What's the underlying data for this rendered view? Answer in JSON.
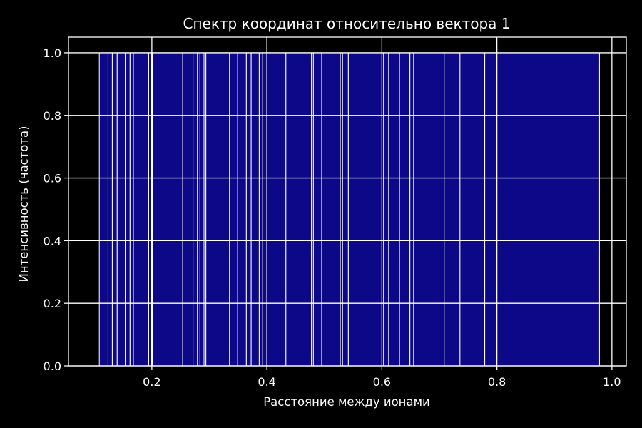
{
  "colors": {
    "background": "#000000",
    "bar_fill": "#0d0887",
    "bar_edge": "#ffffff",
    "axes": "#ffffff",
    "grid": "#ffffff",
    "text": "#ffffff"
  },
  "chart_data": {
    "type": "bar",
    "title": "Спектр координат относительно вектора 1",
    "xlabel": "Расстояние между ионами",
    "ylabel": "Интенсивность (частота)",
    "xlim": [
      0.055,
      1.025
    ],
    "ylim": [
      0.0,
      1.05
    ],
    "xticks": [
      0.2,
      0.4,
      0.6,
      0.8,
      1.0
    ],
    "xtick_labels": [
      "0.2",
      "0.4",
      "0.6",
      "0.8",
      "1.0"
    ],
    "yticks": [
      0.0,
      0.2,
      0.4,
      0.6,
      0.8,
      1.0
    ],
    "ytick_labels": [
      "0.0",
      "0.2",
      "0.4",
      "0.6",
      "0.8",
      "1.0"
    ],
    "grid": true,
    "legend": "none",
    "bar_value": 1.0,
    "bar_edges": [
      0.1086,
      0.1238,
      0.1312,
      0.1397,
      0.1538,
      0.1621,
      0.1679,
      0.1945,
      0.1993,
      0.2014,
      0.2536,
      0.2716,
      0.2793,
      0.2837,
      0.2907,
      0.294,
      0.3351,
      0.3492,
      0.3643,
      0.3727,
      0.3867,
      0.3927,
      0.4331,
      0.4776,
      0.4809,
      0.4953,
      0.5277,
      0.5316,
      0.5417,
      0.603,
      0.6118,
      0.6307,
      0.6488,
      0.6552,
      0.7084,
      0.7358,
      0.7789,
      0.9784
    ]
  }
}
